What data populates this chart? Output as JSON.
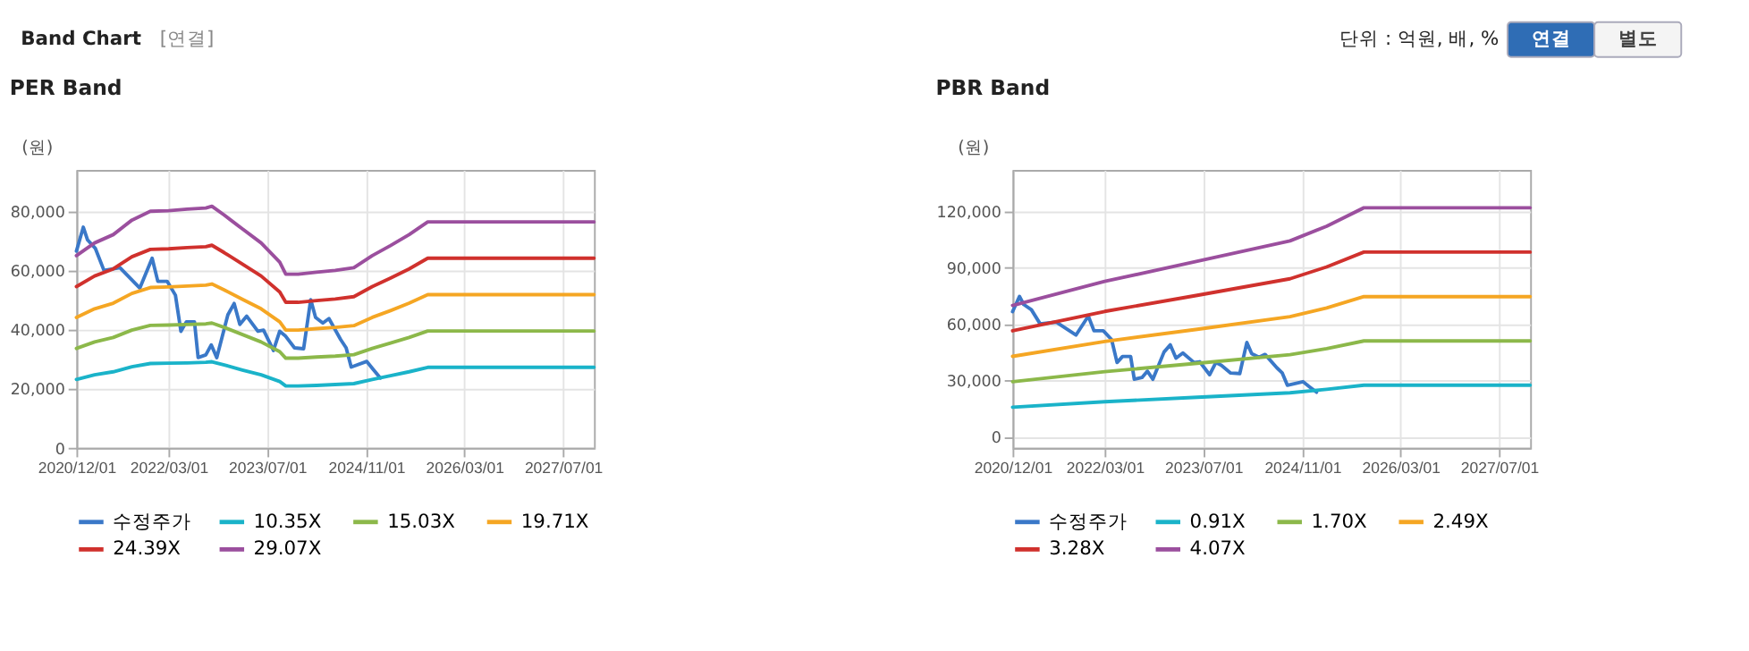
{
  "chart_data": [
    {
      "type": "line",
      "title": "PER Band",
      "ylabel": "(원)",
      "grid": true,
      "legend": "bottom",
      "annotations": [
        "Band Chart",
        "[연결]",
        "단위 : 억원, 배, %",
        "연결",
        "별도"
      ],
      "xlim": [
        "2020-12-01",
        "2027-12-01"
      ],
      "xticks": [
        {
          "value": "2020-12-01",
          "label": "2020/12/01"
        },
        {
          "value": "2022-03-01",
          "label": "2022/03/01"
        },
        {
          "value": "2023-07-01",
          "label": "2023/07/01"
        },
        {
          "value": "2024-11-01",
          "label": "2024/11/01"
        },
        {
          "value": "2026-03-01",
          "label": "2026/03/01"
        },
        {
          "value": "2027-07-01",
          "label": "2027/07/01"
        }
      ],
      "ylim": [
        0,
        94000
      ],
      "yticks": [
        0,
        {
          "value": 20000,
          "label": "20,000"
        },
        {
          "value": 40000,
          "label": "40,000"
        },
        {
          "value": 60000,
          "label": "60,000"
        },
        {
          "value": 80000,
          "label": "80,000"
        }
      ],
      "x": [
        "2020-12",
        "2021-03",
        "2021-06",
        "2021-09",
        "2021-12",
        "2022-03",
        "2022-06",
        "2022-09",
        "2022-10",
        "2022-12",
        "2023-03",
        "2023-06",
        "2023-09",
        "2023-10",
        "2023-12",
        "2024-03",
        "2024-06",
        "2024-09",
        "2024-12",
        "2025-03",
        "2025-06",
        "2025-09",
        "2027-12"
      ],
      "series": [
        {
          "name": "수정주가",
          "color": "#3a78c8",
          "x": [
            "2020-12-01",
            "2021-01-04",
            "2021-01-25",
            "2021-03-04",
            "2021-04-16",
            "2021-07-04",
            "2021-10-10",
            "2021-12-10",
            "2022-01-07",
            "2022-02-22",
            "2022-04-04",
            "2022-05-01",
            "2022-05-28",
            "2022-07-07",
            "2022-07-25",
            "2022-09-01",
            "2022-09-28",
            "2022-10-25",
            "2022-12-19",
            "2023-01-19",
            "2023-02-16",
            "2023-03-22",
            "2023-05-16",
            "2023-06-13",
            "2023-08-01",
            "2023-09-01",
            "2023-09-28",
            "2023-11-13",
            "2023-12-28",
            "2024-02-01",
            "2024-02-25",
            "2024-04-01",
            "2024-05-01",
            "2024-06-28",
            "2024-07-25",
            "2024-08-19",
            "2024-11-04",
            "2024-12-07",
            "2025-01-10"
          ],
          "values": [
            66500,
            74600,
            70300,
            67500,
            60000,
            60900,
            54000,
            64100,
            56300,
            56300,
            51600,
            39400,
            42600,
            42600,
            30500,
            31400,
            34800,
            30500,
            45000,
            48800,
            41700,
            44500,
            39400,
            39800,
            32900,
            39400,
            37900,
            33800,
            33500,
            50100,
            44100,
            42200,
            43700,
            36600,
            33800,
            27300,
            29200,
            26400,
            23600
          ]
        },
        {
          "name": "10.35X",
          "color": "#1ab3c9",
          "values": [
            23100,
            24700,
            25700,
            27400,
            28500,
            28600,
            28700,
            28900,
            29100,
            28000,
            26300,
            24700,
            22400,
            20900,
            20900,
            21100,
            21400,
            21700,
            23100,
            24400,
            25700,
            27200,
            27200
          ]
        },
        {
          "name": "15.03X",
          "color": "#8cb84a",
          "values": [
            33600,
            35800,
            37300,
            39800,
            41400,
            41500,
            41700,
            41900,
            42200,
            40700,
            38300,
            35800,
            32500,
            30300,
            30300,
            30700,
            31000,
            31500,
            33600,
            35400,
            37300,
            39500,
            39500
          ]
        },
        {
          "name": "19.71X",
          "color": "#f5a623",
          "values": [
            44100,
            47000,
            48900,
            52200,
            54200,
            54400,
            54700,
            55000,
            55400,
            53400,
            50200,
            47000,
            42600,
            39800,
            39800,
            40300,
            40700,
            41300,
            44100,
            46400,
            48900,
            51800,
            51800
          ]
        },
        {
          "name": "24.39X",
          "color": "#d0312d",
          "values": [
            54500,
            58100,
            60500,
            64600,
            67100,
            67300,
            67700,
            68000,
            68500,
            66000,
            62100,
            58100,
            52700,
            49200,
            49200,
            49800,
            50300,
            51100,
            54500,
            57400,
            60500,
            64100,
            64100
          ]
        },
        {
          "name": "29.07X",
          "color": "#9b4f9e",
          "values": [
            65000,
            69300,
            72100,
            77000,
            80000,
            80200,
            80700,
            81100,
            81700,
            78700,
            74000,
            69300,
            62800,
            58700,
            58700,
            59400,
            60000,
            60900,
            65000,
            68400,
            72100,
            76400,
            76400
          ]
        }
      ]
    },
    {
      "type": "line",
      "title": "PBR Band",
      "ylabel": "(원)",
      "grid": true,
      "legend": "bottom",
      "xlim": [
        "2020-12-01",
        "2027-12-01"
      ],
      "xticks": [
        {
          "value": "2020-12-01",
          "label": "2020/12/01"
        },
        {
          "value": "2022-03-01",
          "label": "2022/03/01"
        },
        {
          "value": "2023-07-01",
          "label": "2023/07/01"
        },
        {
          "value": "2024-11-01",
          "label": "2024/11/01"
        },
        {
          "value": "2026-03-01",
          "label": "2026/03/01"
        },
        {
          "value": "2027-07-01",
          "label": "2027/07/01"
        }
      ],
      "ylim": [
        -6000,
        142000
      ],
      "yticks": [
        0,
        {
          "value": 30000,
          "label": "30,000"
        },
        {
          "value": 60000,
          "label": "60,000"
        },
        {
          "value": 90000,
          "label": "90,000"
        },
        {
          "value": 120000,
          "label": "120,000"
        }
      ],
      "x": [
        "2020-12",
        "2022-03",
        "2023-06",
        "2024-09",
        "2025-03",
        "2025-09",
        "2027-12"
      ],
      "series": [
        {
          "name": "수정주가",
          "color": "#3a78c8",
          "x": [
            "2020-12-01",
            "2021-01-04",
            "2021-01-25",
            "2021-03-04",
            "2021-04-16",
            "2021-07-04",
            "2021-10-10",
            "2021-12-10",
            "2022-01-07",
            "2022-02-22",
            "2022-04-04",
            "2022-05-01",
            "2022-05-28",
            "2022-07-07",
            "2022-07-25",
            "2022-09-01",
            "2022-09-28",
            "2022-10-25",
            "2022-12-19",
            "2023-01-19",
            "2023-02-16",
            "2023-03-22",
            "2023-05-16",
            "2023-06-13",
            "2023-08-01",
            "2023-09-01",
            "2023-09-28",
            "2023-11-13",
            "2023-12-28",
            "2024-02-01",
            "2024-02-25",
            "2024-04-01",
            "2024-05-01",
            "2024-06-28",
            "2024-07-25",
            "2024-08-19",
            "2024-11-04",
            "2024-12-07",
            "2025-01-10"
          ],
          "values": [
            66500,
            74600,
            70300,
            67500,
            60000,
            60900,
            54000,
            64100,
            56300,
            56300,
            51600,
            39400,
            42600,
            42600,
            30500,
            31400,
            34800,
            30500,
            45000,
            48800,
            41700,
            44500,
            39400,
            39800,
            32900,
            39400,
            37900,
            33800,
            33500,
            50100,
            44100,
            42200,
            43700,
            36600,
            33800,
            27300,
            29200,
            26400,
            23600
          ]
        },
        {
          "name": "0.91X",
          "color": "#1ab3c9",
          "values": [
            15600,
            18500,
            20900,
            23300,
            25100,
            27300,
            27300
          ]
        },
        {
          "name": "1.70X",
          "color": "#8cb84a",
          "values": [
            29200,
            34500,
            39000,
            43600,
            46800,
            50900,
            50900
          ]
        },
        {
          "name": "2.49X",
          "color": "#f5a623",
          "values": [
            42700,
            50600,
            57100,
            63800,
            68500,
            74500,
            74500
          ]
        },
        {
          "name": "3.28X",
          "color": "#d0312d",
          "values": [
            56300,
            66600,
            75200,
            84000,
            90300,
            98200,
            98200
          ]
        },
        {
          "name": "4.07X",
          "color": "#9b4f9e",
          "values": [
            69800,
            82600,
            93300,
            104200,
            112000,
            121800,
            121800
          ]
        }
      ]
    }
  ]
}
